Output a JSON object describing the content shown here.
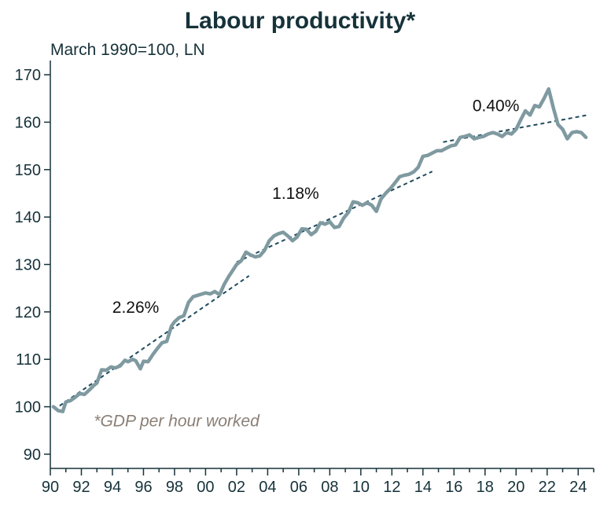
{
  "chart_data": {
    "type": "line",
    "title": "Labour productivity*",
    "subtitle": "March 1990=100, LN",
    "note": "*GDP per hour worked",
    "xlim": [
      1990,
      2025
    ],
    "ylim": [
      87,
      173
    ],
    "y_ticks": [
      90,
      100,
      110,
      120,
      130,
      140,
      150,
      160,
      170
    ],
    "x_ticks": [
      {
        "x": 1990,
        "label": "90"
      },
      {
        "x": 1992,
        "label": "92"
      },
      {
        "x": 1994,
        "label": "94"
      },
      {
        "x": 1996,
        "label": "96"
      },
      {
        "x": 1998,
        "label": "98"
      },
      {
        "x": 2000,
        "label": "00"
      },
      {
        "x": 2002,
        "label": "02"
      },
      {
        "x": 2004,
        "label": "04"
      },
      {
        "x": 2006,
        "label": "06"
      },
      {
        "x": 2008,
        "label": "08"
      },
      {
        "x": 2010,
        "label": "10"
      },
      {
        "x": 2012,
        "label": "12"
      },
      {
        "x": 2014,
        "label": "14"
      },
      {
        "x": 2016,
        "label": "16"
      },
      {
        "x": 2018,
        "label": "18"
      },
      {
        "x": 2020,
        "label": "20"
      },
      {
        "x": 2022,
        "label": "22"
      },
      {
        "x": 2024,
        "label": "24"
      }
    ],
    "series": [
      {
        "line_color": "#7f9aa0",
        "x": [
          1990.2,
          1990.5,
          1990.8,
          1991.0,
          1991.3,
          1991.6,
          1991.9,
          1992.2,
          1992.5,
          1992.8,
          1993.0,
          1993.3,
          1993.6,
          1993.9,
          1994.2,
          1994.5,
          1994.8,
          1995.0,
          1995.3,
          1995.5,
          1995.8,
          1996.0,
          1996.3,
          1996.6,
          1996.9,
          1997.2,
          1997.5,
          1997.8,
          1998.0,
          1998.3,
          1998.6,
          1998.9,
          1999.2,
          1999.5,
          1999.8,
          2000.0,
          2000.3,
          2000.6,
          2000.9,
          2001.2,
          2001.5,
          2001.8,
          2002.0,
          2002.3,
          2002.6,
          2002.9,
          2003.2,
          2003.5,
          2003.8,
          2004.1,
          2004.4,
          2004.7,
          2005.0,
          2005.3,
          2005.6,
          2005.9,
          2006.2,
          2006.5,
          2006.8,
          2007.1,
          2007.4,
          2007.7,
          2008.0,
          2008.3,
          2008.6,
          2008.9,
          2009.2,
          2009.5,
          2009.8,
          2010.1,
          2010.4,
          2010.7,
          2011.0,
          2011.3,
          2011.6,
          2011.9,
          2012.2,
          2012.5,
          2012.8,
          2013.1,
          2013.4,
          2013.7,
          2014.0,
          2014.3,
          2014.6,
          2014.9,
          2015.2,
          2015.5,
          2015.8,
          2016.1,
          2016.4,
          2016.7,
          2017.0,
          2017.3,
          2017.6,
          2017.9,
          2018.2,
          2018.5,
          2018.8,
          2019.1,
          2019.4,
          2019.7,
          2020.0,
          2020.3,
          2020.6,
          2020.9,
          2021.2,
          2021.5,
          2021.8,
          2022.1,
          2022.4,
          2022.7,
          2023.0,
          2023.3,
          2023.6,
          2023.9,
          2024.2,
          2024.5
        ],
        "y": [
          100.0,
          99.2,
          99.0,
          101.0,
          101.3,
          102.0,
          102.8,
          102.6,
          103.5,
          104.5,
          105.0,
          107.8,
          107.7,
          108.4,
          108.2,
          108.6,
          109.8,
          109.5,
          110.0,
          109.7,
          108.0,
          109.6,
          109.5,
          111.0,
          112.3,
          113.5,
          113.8,
          117.0,
          117.9,
          118.8,
          119.2,
          122.0,
          123.2,
          123.5,
          123.8,
          124.0,
          123.8,
          124.3,
          123.6,
          125.8,
          127.5,
          129.0,
          130.0,
          130.8,
          132.6,
          132.0,
          131.6,
          131.8,
          133.0,
          135.0,
          136.0,
          136.5,
          136.8,
          136.0,
          135.0,
          135.8,
          137.5,
          137.4,
          136.3,
          137.0,
          138.8,
          138.5,
          139.0,
          137.8,
          138.0,
          139.8,
          141.0,
          143.2,
          143.0,
          142.5,
          143.0,
          142.5,
          141.2,
          143.8,
          145.0,
          146.0,
          147.2,
          148.5,
          148.8,
          149.0,
          149.5,
          150.5,
          152.8,
          153.0,
          153.5,
          154.0,
          154.0,
          154.5,
          155.0,
          155.2,
          156.8,
          157.0,
          157.3,
          156.5,
          156.8,
          157.0,
          157.5,
          157.8,
          157.5,
          157.0,
          157.8,
          157.5,
          158.5,
          160.5,
          162.4,
          161.5,
          163.5,
          163.2,
          165.0,
          167.0,
          163.0,
          159.5,
          158.5,
          156.5,
          157.8,
          158.0,
          157.8,
          156.8
        ]
      }
    ],
    "trend_lines": [
      {
        "from": [
          1990.6,
          100.2
        ],
        "to": [
          2002.8,
          127.6
        ],
        "label": "2.26%"
      },
      {
        "from": [
          2002.0,
          130.5
        ],
        "to": [
          2014.6,
          149.6
        ],
        "label": "1.18%"
      },
      {
        "from": [
          2015.3,
          155.8
        ],
        "to": [
          2024.6,
          161.5
        ],
        "label": "0.40%"
      }
    ],
    "annotations": [
      {
        "text": "2.26%",
        "x": 1995.5,
        "y": 119.8
      },
      {
        "text": "1.18%",
        "x": 2005.8,
        "y": 143.8
      },
      {
        "text": "0.40%",
        "x": 2018.7,
        "y": 162.3
      }
    ],
    "note_position": {
      "x": 1992.8,
      "y": 95.9
    },
    "colors": {
      "series": "#7f9aa0",
      "trend": "#1f4b5e",
      "axis": "#16323a",
      "note": "#8a7f76"
    }
  }
}
